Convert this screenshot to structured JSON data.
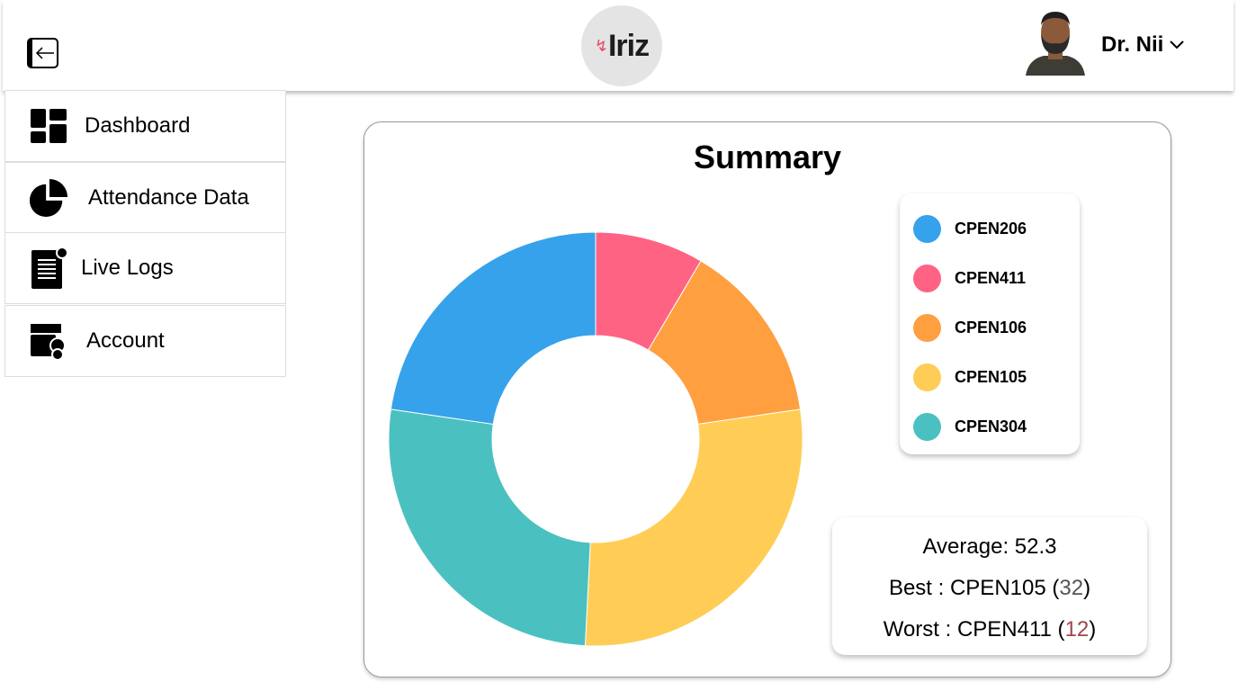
{
  "header": {
    "logo_text": "Iriz",
    "user_name": "Dr. Nii"
  },
  "sidebar": {
    "items": [
      {
        "label": "Dashboard"
      },
      {
        "label": "Attendance Data"
      },
      {
        "label": "Live Logs"
      },
      {
        "label": "Account"
      }
    ]
  },
  "summary": {
    "title": "Summary",
    "average_label": "Average: 52.3",
    "best_prefix": "Best : CPEN105 (",
    "best_value": "32",
    "worst_prefix": "Worst : CPEN411 (",
    "worst_value": "12",
    "close_paren": ")"
  },
  "chart_data": {
    "type": "pie",
    "donut": true,
    "title": "Summary",
    "legend_position": "right",
    "categories": [
      "CPEN206",
      "CPEN411",
      "CPEN106",
      "CPEN105",
      "CPEN304"
    ],
    "values": [
      22.7,
      8.5,
      14.2,
      28.1,
      26.5
    ],
    "colors": [
      "#36a2eb",
      "#ff6384",
      "#ff9f40",
      "#ffcd56",
      "#4bc0c0"
    ],
    "draw_order": [
      "CPEN411",
      "CPEN106",
      "CPEN105",
      "CPEN304",
      "CPEN206"
    ]
  }
}
